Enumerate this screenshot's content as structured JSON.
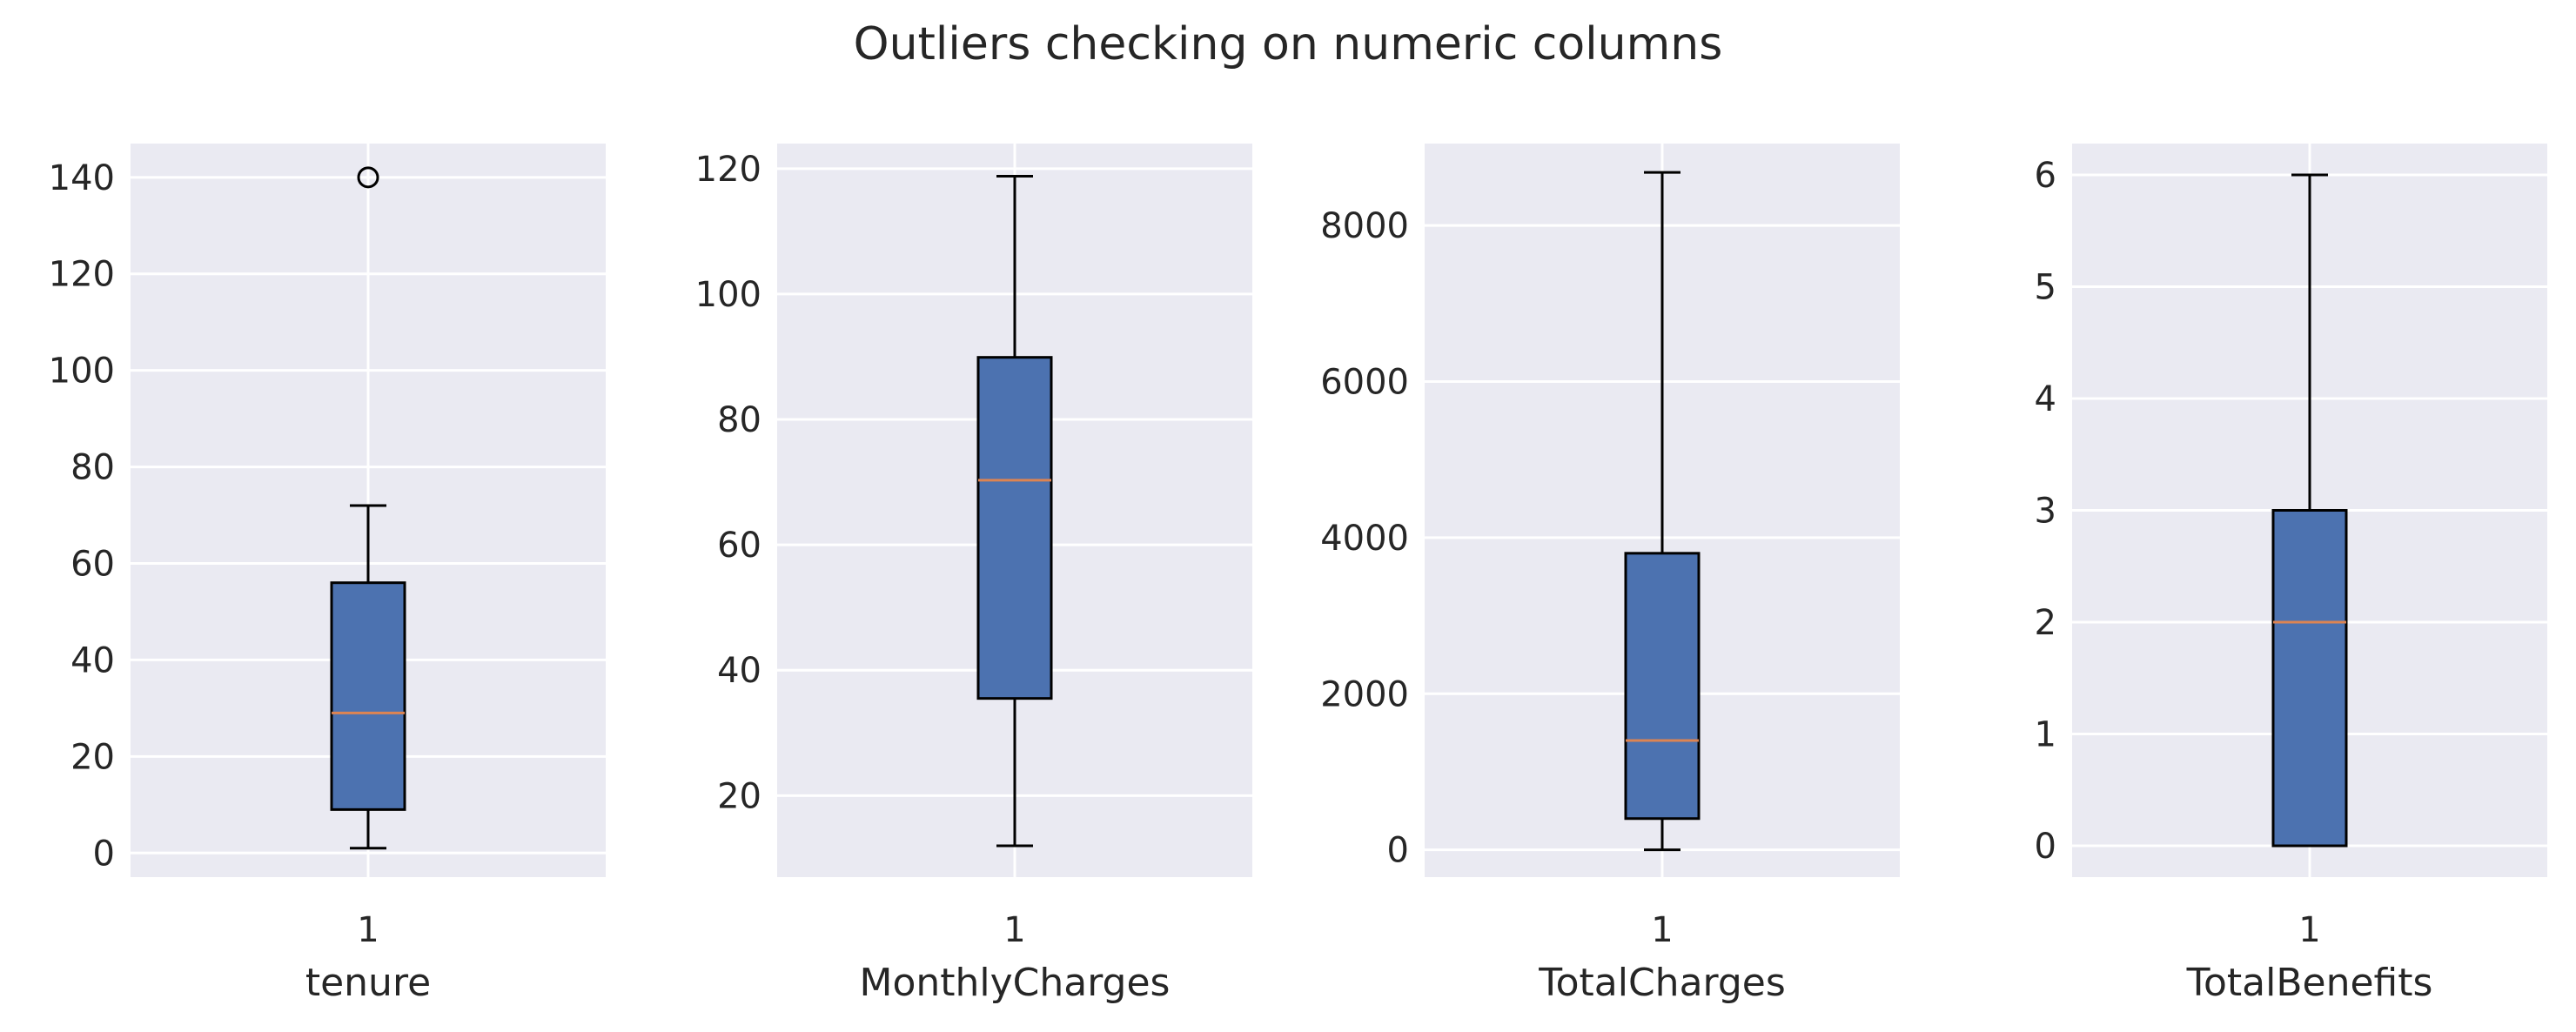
{
  "figure": {
    "title": "Outliers checking on numeric columns"
  },
  "style": {
    "panel_bg": "#eaeaf2",
    "grid": "#ffffff",
    "box_fill": "#4c72b0",
    "median": "#dd8452",
    "outline": "#000000",
    "text": "#262626"
  },
  "chart_data": [
    {
      "type": "box",
      "title": "",
      "xlabel": "tenure",
      "categories": [
        "1"
      ],
      "ylim": [
        -5,
        147
      ],
      "yticks": [
        0,
        20,
        40,
        60,
        80,
        100,
        120,
        140
      ],
      "grid": true,
      "box": {
        "whisker_low": 1,
        "q1": 9,
        "median": 29,
        "q3": 56,
        "whisker_high": 72,
        "outliers": [
          140
        ]
      }
    },
    {
      "type": "box",
      "title": "",
      "xlabel": "MonthlyCharges",
      "categories": [
        "1"
      ],
      "ylim": [
        7,
        124
      ],
      "yticks": [
        20,
        40,
        60,
        80,
        100,
        120
      ],
      "grid": true,
      "box": {
        "whisker_low": 12,
        "q1": 35.5,
        "median": 70.3,
        "q3": 89.9,
        "whisker_high": 118.8,
        "outliers": []
      }
    },
    {
      "type": "box",
      "title": "",
      "xlabel": "TotalCharges",
      "categories": [
        "1"
      ],
      "ylim": [
        -350,
        9050
      ],
      "yticks": [
        0,
        2000,
        4000,
        6000,
        8000
      ],
      "grid": true,
      "box": {
        "whisker_low": 0,
        "q1": 400,
        "median": 1400,
        "q3": 3800,
        "whisker_high": 8680,
        "outliers": []
      }
    },
    {
      "type": "box",
      "title": "",
      "xlabel": "TotalBenefits",
      "categories": [
        "1"
      ],
      "ylim": [
        -0.28,
        6.28
      ],
      "yticks": [
        0,
        1,
        2,
        3,
        4,
        5,
        6
      ],
      "grid": true,
      "box": {
        "whisker_low": 0,
        "q1": 0,
        "median": 2,
        "q3": 3,
        "whisker_high": 6,
        "outliers": []
      }
    }
  ]
}
